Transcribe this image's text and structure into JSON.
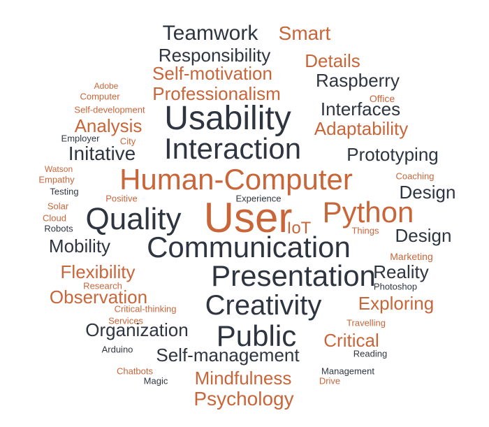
{
  "colors": {
    "dark": "#2f3540",
    "accent": "#c8663a"
  },
  "words": [
    {
      "text": "Teamwork",
      "color": "dark"
    },
    {
      "text": "Smart",
      "color": "accent"
    },
    {
      "text": "Responsibility",
      "color": "dark"
    },
    {
      "text": "Details",
      "color": "accent"
    },
    {
      "text": "Self-motivation",
      "color": "accent"
    },
    {
      "text": "Raspberry",
      "color": "dark"
    },
    {
      "text": "Adobe",
      "color": "accent"
    },
    {
      "text": "Computer",
      "color": "accent"
    },
    {
      "text": "Professionalism",
      "color": "accent"
    },
    {
      "text": "Office",
      "color": "accent"
    },
    {
      "text": "Self-development",
      "color": "accent"
    },
    {
      "text": "Interfaces",
      "color": "dark"
    },
    {
      "text": "Usability",
      "color": "dark"
    },
    {
      "text": "Analysis",
      "color": "accent"
    },
    {
      "text": "Adaptability",
      "color": "accent"
    },
    {
      "text": "Employer",
      "color": "dark"
    },
    {
      "text": "City",
      "color": "accent"
    },
    {
      "text": "Initative",
      "color": "dark"
    },
    {
      "text": "Interaction",
      "color": "dark"
    },
    {
      "text": "Prototyping",
      "color": "dark"
    },
    {
      "text": "Watson",
      "color": "accent"
    },
    {
      "text": "Empathy",
      "color": "accent"
    },
    {
      "text": "Human-Computer",
      "color": "accent"
    },
    {
      "text": "Coaching",
      "color": "accent"
    },
    {
      "text": "Testing",
      "color": "dark"
    },
    {
      "text": "Design",
      "color": "dark"
    },
    {
      "text": "Positive",
      "color": "accent"
    },
    {
      "text": "Experience",
      "color": "dark"
    },
    {
      "text": "Solar",
      "color": "accent"
    },
    {
      "text": "Cloud",
      "color": "accent"
    },
    {
      "text": "Quality",
      "color": "dark"
    },
    {
      "text": "User",
      "color": "accent"
    },
    {
      "text": "Python",
      "color": "accent"
    },
    {
      "text": "Robots",
      "color": "dark"
    },
    {
      "text": "IoT",
      "color": "accent"
    },
    {
      "text": "Things",
      "color": "accent"
    },
    {
      "text": "Design",
      "color": "dark"
    },
    {
      "text": "Mobility",
      "color": "dark"
    },
    {
      "text": "Communication",
      "color": "dark"
    },
    {
      "text": "Marketing",
      "color": "accent"
    },
    {
      "text": "Flexibility",
      "color": "accent"
    },
    {
      "text": "Presentation",
      "color": "dark"
    },
    {
      "text": "Reality",
      "color": "dark"
    },
    {
      "text": "Research",
      "color": "accent"
    },
    {
      "text": "Photoshop",
      "color": "dark"
    },
    {
      "text": "Observation",
      "color": "accent"
    },
    {
      "text": "Critical-thinking",
      "color": "accent"
    },
    {
      "text": "Creativity",
      "color": "dark"
    },
    {
      "text": "Exploring",
      "color": "accent"
    },
    {
      "text": "Services",
      "color": "accent"
    },
    {
      "text": "Organization",
      "color": "dark"
    },
    {
      "text": "Travelling",
      "color": "accent"
    },
    {
      "text": "Public",
      "color": "dark"
    },
    {
      "text": "Critical",
      "color": "accent"
    },
    {
      "text": "Arduino",
      "color": "dark"
    },
    {
      "text": "Self-management",
      "color": "dark"
    },
    {
      "text": "Reading",
      "color": "dark"
    },
    {
      "text": "Chatbots",
      "color": "accent"
    },
    {
      "text": "Management",
      "color": "dark"
    },
    {
      "text": "Magic",
      "color": "dark"
    },
    {
      "text": "Mindfulness",
      "color": "accent"
    },
    {
      "text": "Drive",
      "color": "accent"
    },
    {
      "text": "Psychology",
      "color": "accent"
    }
  ]
}
